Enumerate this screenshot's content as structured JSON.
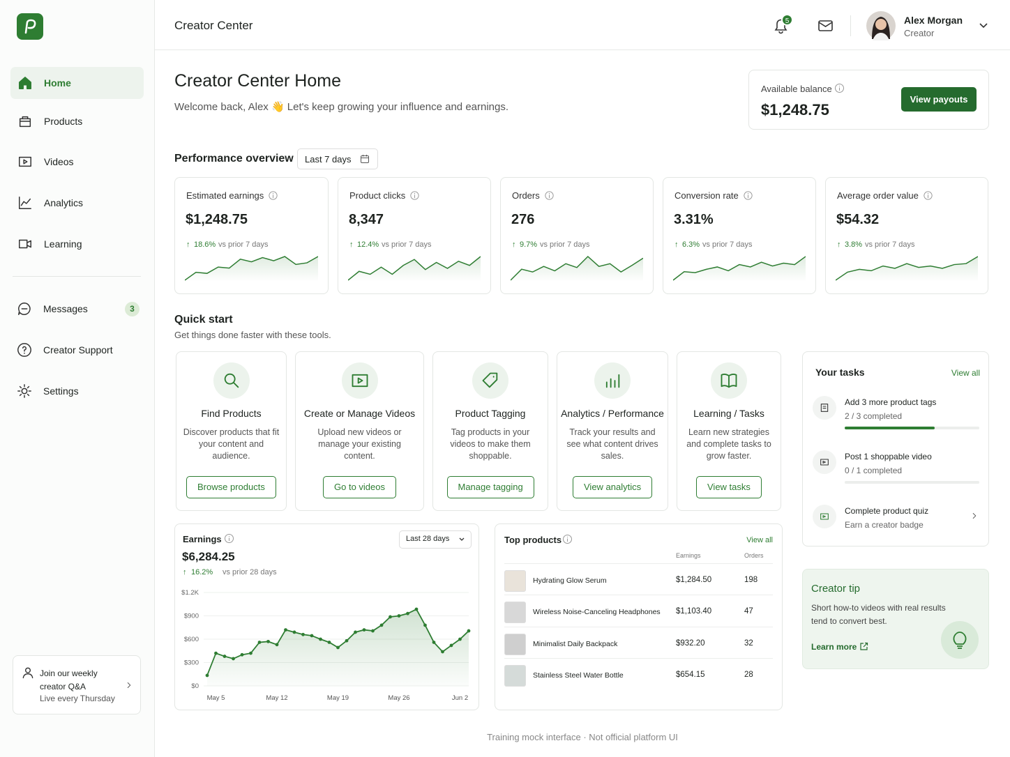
{
  "sidebar": {
    "nav": [
      {
        "label": "Home"
      },
      {
        "label": "Products"
      },
      {
        "label": "Videos"
      },
      {
        "label": "Analytics"
      },
      {
        "label": "Learning"
      }
    ],
    "nav2": [
      {
        "label": "Messages",
        "badge": 3
      },
      {
        "label": "Creator Support"
      },
      {
        "label": "Settings"
      }
    ],
    "promo": {
      "title": "Join our weekly creator Q&A",
      "subtitle": "Live every Thursday"
    }
  },
  "header": {
    "title": "Creator Center",
    "notifications": 5,
    "user": {
      "name": "Alex Morgan",
      "role": "Creator"
    }
  },
  "hero": {
    "title": "Creator Center Home",
    "subtitle": "Welcome back, Alex 👋 Let's keep growing your influence and earnings."
  },
  "balance": {
    "label": "Available balance",
    "value": "$1,248.75",
    "button": "View payouts"
  },
  "performance": {
    "title": "Performance overview",
    "range": "Last 7 days",
    "metrics": [
      {
        "label": "Estimated earnings",
        "value": "$1,248.75",
        "change": "18.6%",
        "compare": "vs prior 7 days",
        "sparkline": [
          15,
          30,
          28,
          40,
          38,
          55,
          50,
          58,
          52,
          60,
          45,
          48,
          60
        ]
      },
      {
        "label": "Product clicks",
        "value": "8,347",
        "change": "12.4%",
        "compare": "vs prior 7 days",
        "sparkline": [
          20,
          35,
          30,
          42,
          30,
          45,
          55,
          38,
          50,
          40,
          52,
          45,
          60
        ]
      },
      {
        "label": "Orders",
        "value": "276",
        "change": "9.7%",
        "compare": "vs prior 7 days",
        "sparkline": [
          15,
          35,
          30,
          40,
          32,
          45,
          38,
          58,
          40,
          45,
          30,
          42,
          55
        ]
      },
      {
        "label": "Conversion rate",
        "value": "3.31%",
        "change": "6.3%",
        "compare": "vs prior 7 days",
        "sparkline": [
          12,
          30,
          28,
          35,
          40,
          32,
          45,
          40,
          50,
          42,
          48,
          45,
          62
        ]
      },
      {
        "label": "Average order value",
        "value": "$54.32",
        "change": "3.8%",
        "compare": "vs prior 7 days",
        "sparkline": [
          15,
          32,
          38,
          35,
          45,
          40,
          50,
          42,
          45,
          40,
          48,
          50,
          65
        ]
      }
    ]
  },
  "quick_start": {
    "title": "Quick start",
    "subtitle": "Get things done faster with these tools.",
    "tools": [
      {
        "title": "Find Products",
        "description": "Discover products that fit your content and audience.",
        "button": "Browse products"
      },
      {
        "title": "Create or Manage Videos",
        "description": "Upload new videos or manage your existing content.",
        "button": "Go to videos"
      },
      {
        "title": "Product Tagging",
        "description": "Tag products in your videos to make them shoppable.",
        "button": "Manage tagging"
      },
      {
        "title": "Analytics / Performance",
        "description": "Track your results and see what content drives sales.",
        "button": "View analytics"
      },
      {
        "title": "Learning / Tasks",
        "description": "Learn new strategies and complete tasks to grow faster.",
        "button": "View tasks"
      }
    ]
  },
  "tasks": {
    "title": "Your tasks",
    "link": "View all",
    "items": [
      {
        "title": "Add 3 more product tags",
        "status": "2 / 3 completed",
        "completed": 2,
        "goal": 3
      },
      {
        "title": "Post 1 shoppable video",
        "status": "0 / 1 completed",
        "completed": 0,
        "goal": 1
      },
      {
        "title": "Complete product quiz",
        "status": "Earn a creator badge"
      }
    ]
  },
  "tip": {
    "title": "Creator tip",
    "text": "Short how-to videos with real results tend to convert best.",
    "link": "Learn more"
  },
  "earnings": {
    "title": "Earnings",
    "range": "Last 28 days",
    "total": "$6,284.25",
    "change": "16.2%",
    "compare": "vs prior 28 days",
    "chart": {
      "type": "line",
      "color": "#2e7d32",
      "categories": [
        null,
        "May 5",
        null,
        null,
        null,
        null,
        null,
        null,
        "May 12",
        null,
        null,
        null,
        null,
        null,
        null,
        "May 19",
        null,
        null,
        null,
        null,
        null,
        null,
        "May 26",
        null,
        null,
        null,
        null,
        null,
        null,
        "Jun 2",
        null
      ],
      "values": [
        135,
        420,
        380,
        350,
        400,
        420,
        560,
        570,
        530,
        720,
        690,
        660,
        645,
        600,
        560,
        493,
        580,
        690,
        720,
        707,
        780,
        887,
        900,
        930,
        985,
        780,
        560,
        439,
        520,
        600,
        707
      ],
      "ylim": [
        0,
        1200
      ],
      "yticks": [
        {
          "value": 0,
          "label": "$0"
        },
        {
          "value": 300,
          "label": "$300"
        },
        {
          "value": 600,
          "label": "$600"
        },
        {
          "value": 900,
          "label": "$900"
        },
        {
          "value": 1200,
          "label": "$1.2K"
        }
      ],
      "grid": true
    }
  },
  "top_products": {
    "title": "Top products",
    "link": "View all",
    "columns": [
      "Earnings",
      "Orders"
    ],
    "rows": [
      {
        "name": "Hydrating Glow Serum",
        "earnings": "$1,284.50",
        "orders": 198
      },
      {
        "name": "Wireless Noise-Canceling Headphones",
        "earnings": "$1,103.40",
        "orders": 47
      },
      {
        "name": "Minimalist Daily Backpack",
        "earnings": "$932.20",
        "orders": 32
      },
      {
        "name": "Stainless Steel Water Bottle",
        "earnings": "$654.15",
        "orders": 28
      }
    ]
  },
  "footer": "Training mock interface · Not official platform UI"
}
